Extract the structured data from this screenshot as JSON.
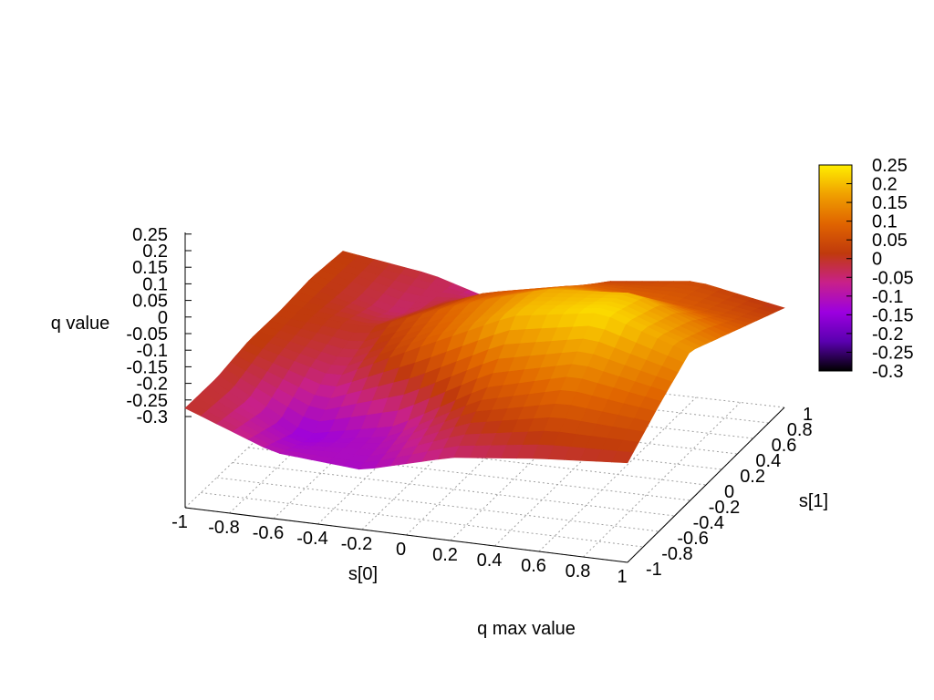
{
  "chart_data": {
    "type": "surface3d",
    "title": "q max value",
    "xlabel": "s[0]",
    "ylabel": "s[1]",
    "zlabel": "q value",
    "xlim": [
      -1,
      1
    ],
    "ylim": [
      -1,
      1
    ],
    "zlim": [
      -0.3,
      0.25
    ],
    "x_ticks": [
      "-1",
      "-0.8",
      "-0.6",
      "-0.4",
      "-0.2",
      "0",
      "0.2",
      "0.4",
      "0.6",
      "0.8",
      "1"
    ],
    "y_ticks": [
      "-1",
      "-0.8",
      "-0.6",
      "-0.4",
      "-0.2",
      "0",
      "0.2",
      "0.4",
      "0.6",
      "0.8",
      "1"
    ],
    "z_ticks": [
      "-0.3",
      "-0.25",
      "-0.2",
      "-0.15",
      "-0.1",
      "-0.05",
      "0",
      "0.05",
      "0.1",
      "0.15",
      "0.2",
      "0.25"
    ],
    "colorbar": {
      "ticks": [
        "-0.3",
        "-0.25",
        "-0.2",
        "-0.15",
        "-0.1",
        "-0.05",
        "0",
        "0.05",
        "0.1",
        "0.15",
        "0.2",
        "0.25"
      ],
      "range": [
        -0.3,
        0.25
      ],
      "colors": [
        "#000000",
        "#5a00b0",
        "#9c00e0",
        "#c8208a",
        "#c03a0c",
        "#e06400",
        "#f0a000",
        "#ffee00"
      ]
    },
    "grid": true,
    "x": [
      -1,
      -0.6,
      -0.2,
      0.2,
      0.6,
      1
    ],
    "y": [
      -1,
      -0.6,
      -0.2,
      0.2,
      0.6,
      1
    ],
    "z": [
      [
        0.0,
        -0.1,
        -0.12,
        -0.05,
        -0.02,
        0.0
      ],
      [
        0.0,
        -0.15,
        -0.1,
        0.05,
        0.12,
        0.08
      ],
      [
        0.02,
        -0.05,
        0.08,
        0.2,
        0.24,
        0.15
      ],
      [
        0.02,
        0.0,
        0.1,
        0.18,
        0.2,
        0.1
      ],
      [
        0.03,
        -0.05,
        0.05,
        0.1,
        0.08,
        0.05
      ],
      [
        0.02,
        -0.02,
        -0.1,
        0.02,
        0.05,
        0.0
      ]
    ]
  }
}
